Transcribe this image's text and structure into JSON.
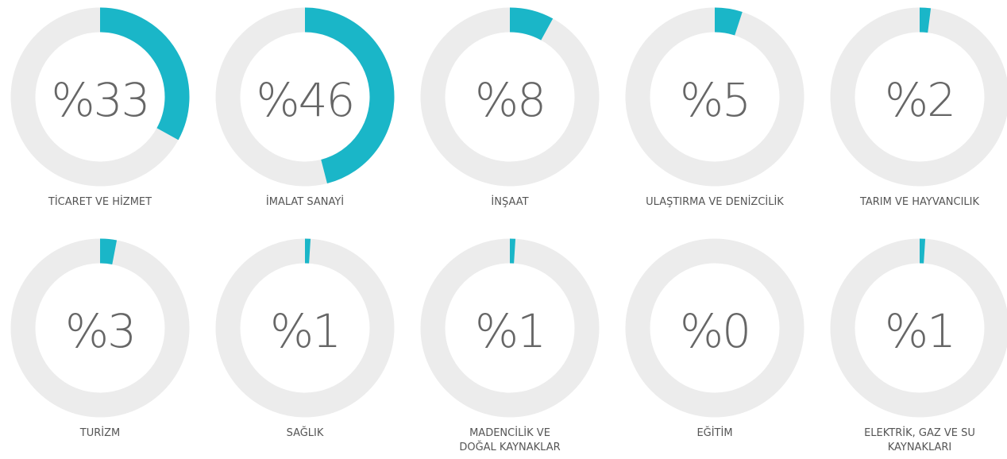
{
  "chart_data": {
    "type": "gauge",
    "categories": [
      "TİCARET VE HİZMET",
      "İMALAT SANAYİ",
      "İNŞAAT",
      "ULAŞTIRMA VE DENİZCİLİK",
      "TARIM VE HAYVANCILIK",
      "TURİZM",
      "SAĞLIK",
      "MADENCİLİK VE\nDOĞAL KAYNAKLAR",
      "EĞİTİM",
      "ELEKTRİK, GAZ VE SU\nKAYNAKLARI"
    ],
    "values": [
      33,
      46,
      8,
      5,
      2,
      3,
      1,
      1,
      0,
      1
    ],
    "value_labels": [
      "%33",
      "%46",
      "%8",
      "%5",
      "%2",
      "%3",
      "%1",
      "%1",
      "%0",
      "%1"
    ],
    "color": "#1ab6c8",
    "track_color": "#ececec"
  }
}
